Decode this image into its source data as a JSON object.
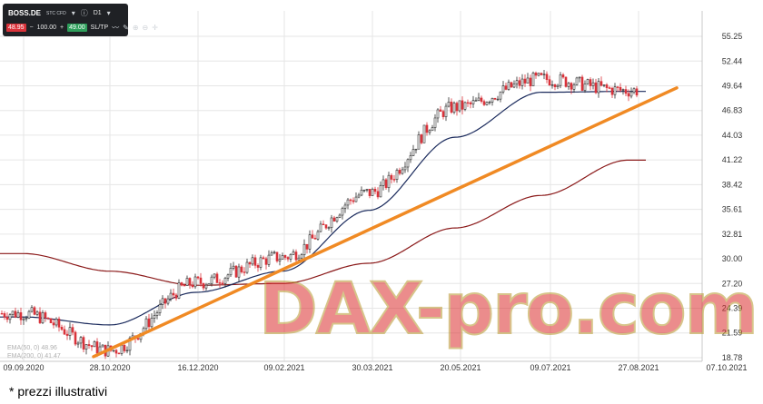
{
  "toolbar": {
    "symbol": "BOSS.DE",
    "instrument": "STC CFD",
    "timeframe": "D1",
    "sell_price": "48.95",
    "quantity": "100.00",
    "buy_price": "49.00",
    "sl_tp": "SL/TP"
  },
  "watermark": "DAX-pro.com",
  "footnote": "* prezzi illustrativi",
  "ema_legend": [
    "EMA(50, 0) 48.96",
    "EMA(200, 0) 41.47"
  ],
  "colors": {
    "candle_up": "#2c2c2c",
    "candle_down": "#d9323a",
    "ema50": "#1a2a5c",
    "ema200": "#8b1a1a",
    "trendline": "#f08a24",
    "sell": "#d9323a",
    "buy": "#2e9e5b"
  },
  "chart_data": {
    "type": "line",
    "title": "",
    "y_ticks": [
      "55.25",
      "52.44",
      "49.64",
      "46.83",
      "44.03",
      "41.22",
      "38.42",
      "35.61",
      "32.81",
      "30.00",
      "27.20",
      "24.39",
      "21.59",
      "18.78"
    ],
    "x_ticks": [
      "09.09.2020",
      "28.10.2020",
      "16.12.2020",
      "09.02.2021",
      "30.03.2021",
      "20.05.2021",
      "09.07.2021",
      "27.08.2021",
      "07.10.2021"
    ],
    "ylim": [
      18.78,
      55.25
    ],
    "series": [
      {
        "name": "",
        "kind": "close",
        "x": [
          "09.09.2020",
          "28.10.2020",
          "16.12.2020",
          "09.02.2021",
          "30.03.2021",
          "20.05.2021",
          "09.07.2021",
          "27.08.2021"
        ],
        "values": [
          23.8,
          19.6,
          27.3,
          30.2,
          37.5,
          47.2,
          50.4,
          49.1
        ]
      },
      {
        "name": "",
        "kind": "ema50",
        "x": [
          "09.09.2020",
          "28.10.2020",
          "16.12.2020",
          "09.02.2021",
          "30.03.2021",
          "20.05.2021",
          "09.07.2021",
          "27.08.2021"
        ],
        "values": [
          23.4,
          22.5,
          26.2,
          28.6,
          35.5,
          43.8,
          48.9,
          49.0
        ]
      },
      {
        "name": "",
        "kind": "ema200",
        "x": [
          "09.09.2020",
          "28.10.2020",
          "16.12.2020",
          "09.02.2021",
          "30.03.2021",
          "20.05.2021",
          "09.07.2021",
          "27.08.2021"
        ],
        "values": [
          30.6,
          28.6,
          27.0,
          27.2,
          29.5,
          33.5,
          37.2,
          41.2
        ]
      }
    ],
    "trendline": {
      "from": {
        "x": "28.10.2020",
        "y": 18.9
      },
      "to": {
        "x": "07.10.2021",
        "y": 49.4
      }
    },
    "grid": true
  }
}
